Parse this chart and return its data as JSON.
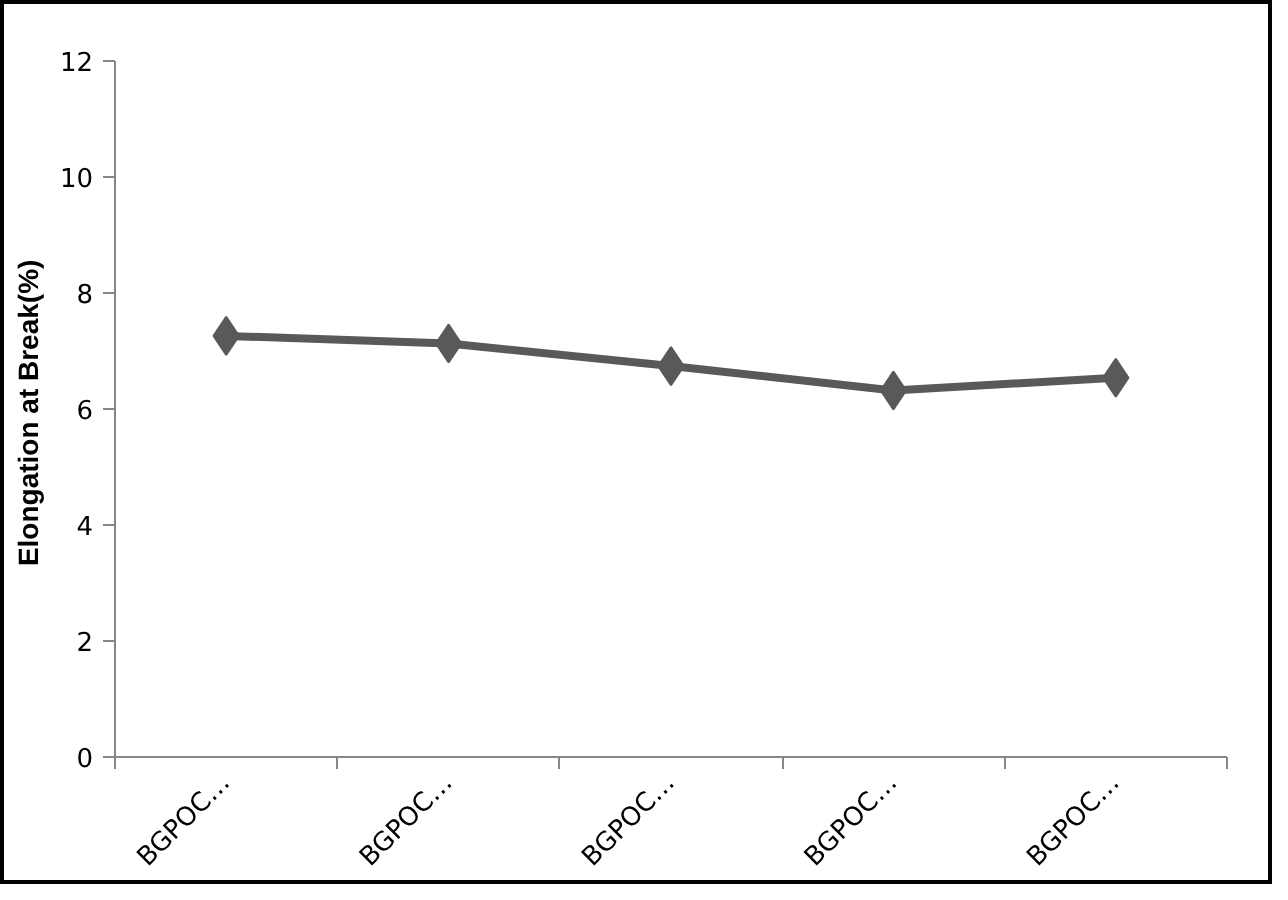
{
  "chart_data": {
    "type": "line",
    "ylabel": "Elongation at  Break(%)",
    "categories": [
      "BGPOC…",
      "BGPOC…",
      "BGPOC…",
      "BGPOC…",
      "BGPOC…"
    ],
    "series": [
      {
        "color": "#595959",
        "values": [
          7.26,
          7.13,
          6.74,
          6.32,
          6.54
        ]
      }
    ],
    "ylim": [
      0,
      12
    ],
    "yticks": [
      0,
      2,
      4,
      6,
      8,
      10,
      12
    ],
    "marker": "diamond",
    "line_style": "solid",
    "grid": false
  }
}
